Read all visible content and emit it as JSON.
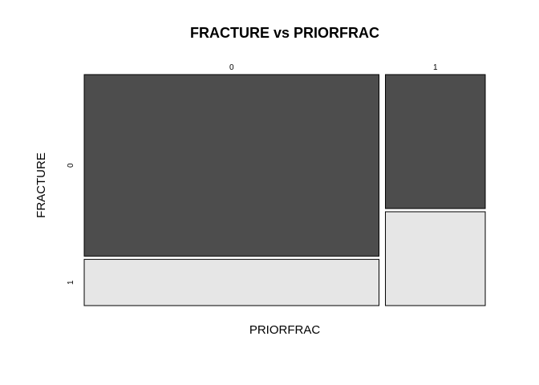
{
  "chart_data": {
    "type": "mosaic",
    "title": "FRACTURE vs PRIORFRAC",
    "xlabel": "PRIORFRAC",
    "ylabel": "FRACTURE",
    "x_categories": [
      "0",
      "1"
    ],
    "y_categories": [
      "0",
      "1"
    ],
    "x_proportions": [
      0.747,
      0.253
    ],
    "cells": [
      {
        "x": "0",
        "y": "0",
        "proportion": 0.797,
        "color": "#4d4d4d"
      },
      {
        "x": "0",
        "y": "1",
        "proportion": 0.203,
        "color": "#e6e6e6"
      },
      {
        "x": "1",
        "y": "0",
        "proportion": 0.588,
        "color": "#4d4d4d"
      },
      {
        "x": "1",
        "y": "1",
        "proportion": 0.412,
        "color": "#e6e6e6"
      }
    ]
  }
}
